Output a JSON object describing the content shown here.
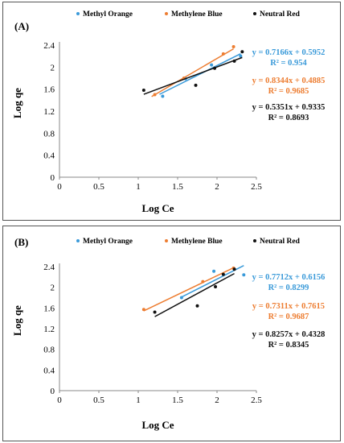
{
  "chart_data": [
    {
      "type": "scatter",
      "panel_label": "(A)",
      "xlabel": "Log Ce",
      "ylabel": "Log qe",
      "xlim": [
        0,
        2.5
      ],
      "ylim": [
        0,
        2.4
      ],
      "xticks": [
        "0",
        "0.5",
        "1",
        "1.5",
        "2",
        "2.5"
      ],
      "yticks": [
        "0",
        "0.4",
        "0.8",
        "1.2",
        "1.6",
        "2",
        "2.4"
      ],
      "legend_position": "top",
      "series": [
        {
          "name": "Methyl Orange",
          "color": "#3a9ad9",
          "points": [
            [
              1.31,
              1.47
            ],
            [
              1.6,
              1.79
            ],
            [
              1.93,
              2.04
            ],
            [
              2.3,
              2.2
            ]
          ],
          "trendline": {
            "slope": 0.7166,
            "intercept": 0.5952,
            "x_range": [
              1.27,
              2.3
            ]
          },
          "equation": "y = 0.7166x + 0.5952",
          "r2": "R² = 0.954"
        },
        {
          "name": "Methylene Blue",
          "color": "#ed7d31",
          "points": [
            [
              1.21,
              1.5
            ],
            [
              1.58,
              1.8
            ],
            [
              2.08,
              2.24
            ],
            [
              2.21,
              2.37
            ]
          ],
          "trendline": {
            "slope": 0.8344,
            "intercept": 0.4885,
            "x_range": [
              1.17,
              2.21
            ]
          },
          "equation": "y = 0.8344x + 0.4885",
          "r2": "R² = 0.9685"
        },
        {
          "name": "Neutral Red",
          "color": "#111111",
          "points": [
            [
              1.07,
              1.58
            ],
            [
              1.73,
              1.67
            ],
            [
              1.97,
              1.98
            ],
            [
              2.22,
              2.11
            ],
            [
              2.32,
              2.28
            ]
          ],
          "trendline": {
            "slope": 0.5351,
            "intercept": 0.9335,
            "x_range": [
              1.07,
              2.32
            ]
          },
          "equation": "y = 0.5351x + 0.9335",
          "r2": "R² = 0.8693"
        }
      ]
    },
    {
      "type": "scatter",
      "panel_label": "(B)",
      "xlabel": "Log Ce",
      "ylabel": "Log qe",
      "xlim": [
        0,
        2.5
      ],
      "ylim": [
        0,
        2.4
      ],
      "xticks": [
        "0",
        "0.5",
        "1",
        "1.5",
        "2",
        "2.5"
      ],
      "yticks": [
        "0",
        "0.4",
        "0.8",
        "1.2",
        "1.6",
        "2",
        "2.4"
      ],
      "legend_position": "top",
      "series": [
        {
          "name": "Methyl Orange",
          "color": "#3a9ad9",
          "points": [
            [
              1.55,
              1.8
            ],
            [
              1.96,
              2.31
            ],
            [
              2.34,
              2.24
            ]
          ],
          "trendline": {
            "slope": 0.7712,
            "intercept": 0.6156,
            "x_range": [
              1.55,
              2.34
            ]
          },
          "equation": "y = 0.7712x + 0.6156",
          "r2": "R² = 0.8299"
        },
        {
          "name": "Methylene Blue",
          "color": "#ed7d31",
          "points": [
            [
              1.07,
              1.57
            ],
            [
              1.82,
              2.11
            ],
            [
              2.21,
              2.37
            ]
          ],
          "trendline": {
            "slope": 0.7311,
            "intercept": 0.7615,
            "x_range": [
              1.07,
              2.21
            ]
          },
          "equation": "y = 0.7311x + 0.7615",
          "r2": "R² = 0.9687"
        },
        {
          "name": "Neutral Red",
          "color": "#111111",
          "points": [
            [
              1.21,
              1.52
            ],
            [
              1.75,
              1.64
            ],
            [
              1.98,
              2.01
            ],
            [
              2.08,
              2.25
            ],
            [
              2.22,
              2.35
            ]
          ],
          "trendline": {
            "slope": 0.8257,
            "intercept": 0.4328,
            "x_range": [
              1.21,
              2.22
            ]
          },
          "equation": "y = 0.8257x + 0.4328",
          "r2": "R² = 0.8345"
        }
      ]
    }
  ]
}
